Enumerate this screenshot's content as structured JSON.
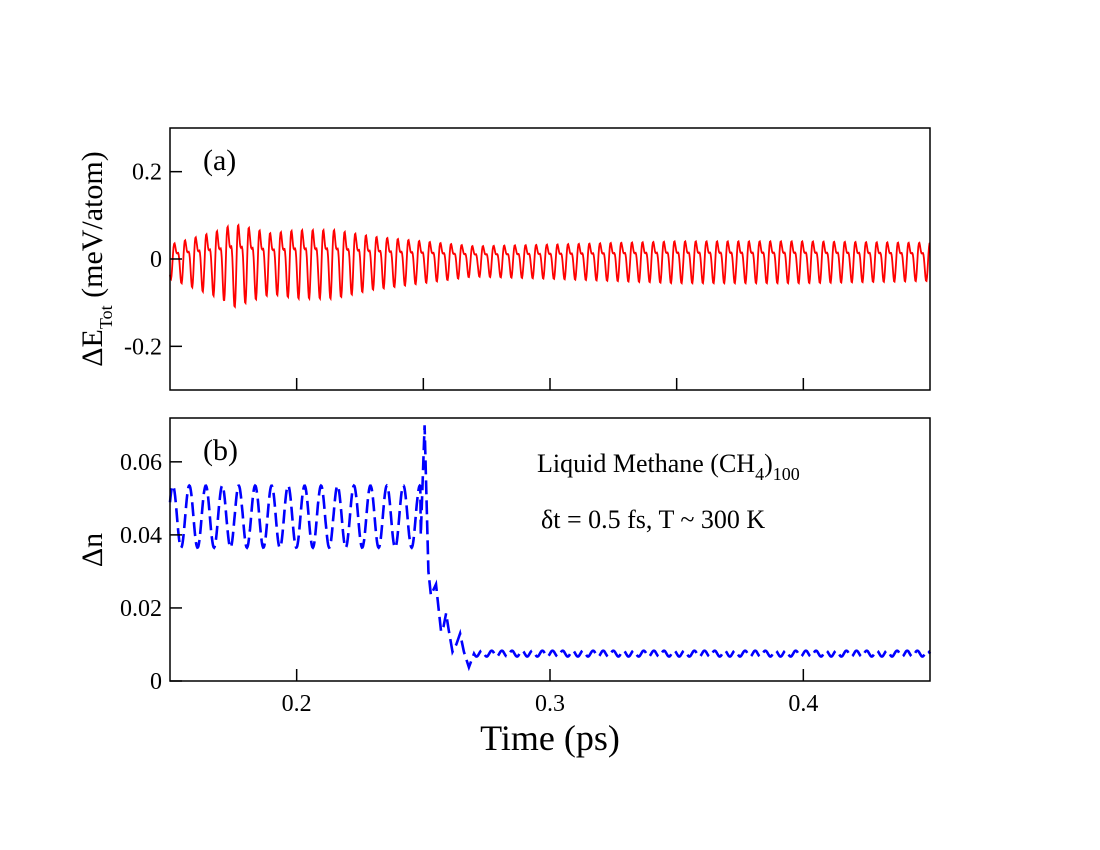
{
  "chart_data": [
    {
      "type": "line",
      "panel_label": "(a)",
      "ylabel": {
        "prefix": "ΔE",
        "subscript": "Tot",
        "suffix": " (meV/atom)"
      },
      "xlabel": "",
      "xlim": [
        0.15,
        0.45
      ],
      "ylim": [
        -0.3,
        0.3
      ],
      "yticks": [
        -0.2,
        0,
        0.2
      ],
      "ytick_labels": [
        "-0.2",
        "0",
        "0.2"
      ],
      "xticks": [
        0.2,
        0.25,
        0.3,
        0.35,
        0.4
      ],
      "series": [
        {
          "name": "ΔE_Tot",
          "color": "#ff0000",
          "style": "solid",
          "oscillation": {
            "center": 0.0,
            "period_ps": 0.0042
          },
          "envelope": {
            "t": [
              0.15,
              0.17,
              0.175,
              0.19,
              0.2,
              0.215,
              0.23,
              0.25,
              0.27,
              0.3,
              0.35,
              0.4,
              0.45
            ],
            "amplitude": [
              0.045,
              0.09,
              0.11,
              0.08,
              0.09,
              0.09,
              0.07,
              0.055,
              0.04,
              0.045,
              0.055,
              0.055,
              0.05
            ]
          }
        }
      ]
    },
    {
      "type": "line",
      "panel_label": "(b)",
      "ylabel": "Δn",
      "xlabel": "Time (ps)",
      "xlim": [
        0.15,
        0.45
      ],
      "ylim": [
        0,
        0.072
      ],
      "yticks": [
        0,
        0.02,
        0.04,
        0.06
      ],
      "ytick_labels": [
        "0",
        "0.02",
        "0.04",
        "0.06"
      ],
      "xticks": [
        0.2,
        0.3,
        0.4
      ],
      "xtick_labels": [
        "0.2",
        "0.3",
        "0.4"
      ],
      "annotations": [
        {
          "text": "Liquid Methane (CH",
          "subscript": "4",
          "after": ")",
          "subscript2": "100"
        },
        {
          "text": "δt = 0.5 fs, T ~ 300 K"
        }
      ],
      "series": [
        {
          "name": "Δn",
          "color": "#0000ff",
          "style": "dashed",
          "segments": [
            {
              "t_range": [
                0.15,
                0.249
              ],
              "center": 0.045,
              "amplitude": 0.0085,
              "period_ps": 0.0065
            },
            {
              "t": [
                0.249,
                0.2505,
                0.252,
                0.254,
                0.256,
                0.258,
                0.26,
                0.263,
                0.266,
                0.27
              ],
              "y": [
                0.04,
                0.07,
                0.03,
                0.025,
                0.02,
                0.015,
                0.014,
                0.01,
                0.008,
                0.0075
              ]
            },
            {
              "t_range": [
                0.27,
                0.45
              ],
              "center": 0.0075,
              "amplitude": 0.0008,
              "period_ps": 0.004
            }
          ]
        }
      ]
    }
  ]
}
